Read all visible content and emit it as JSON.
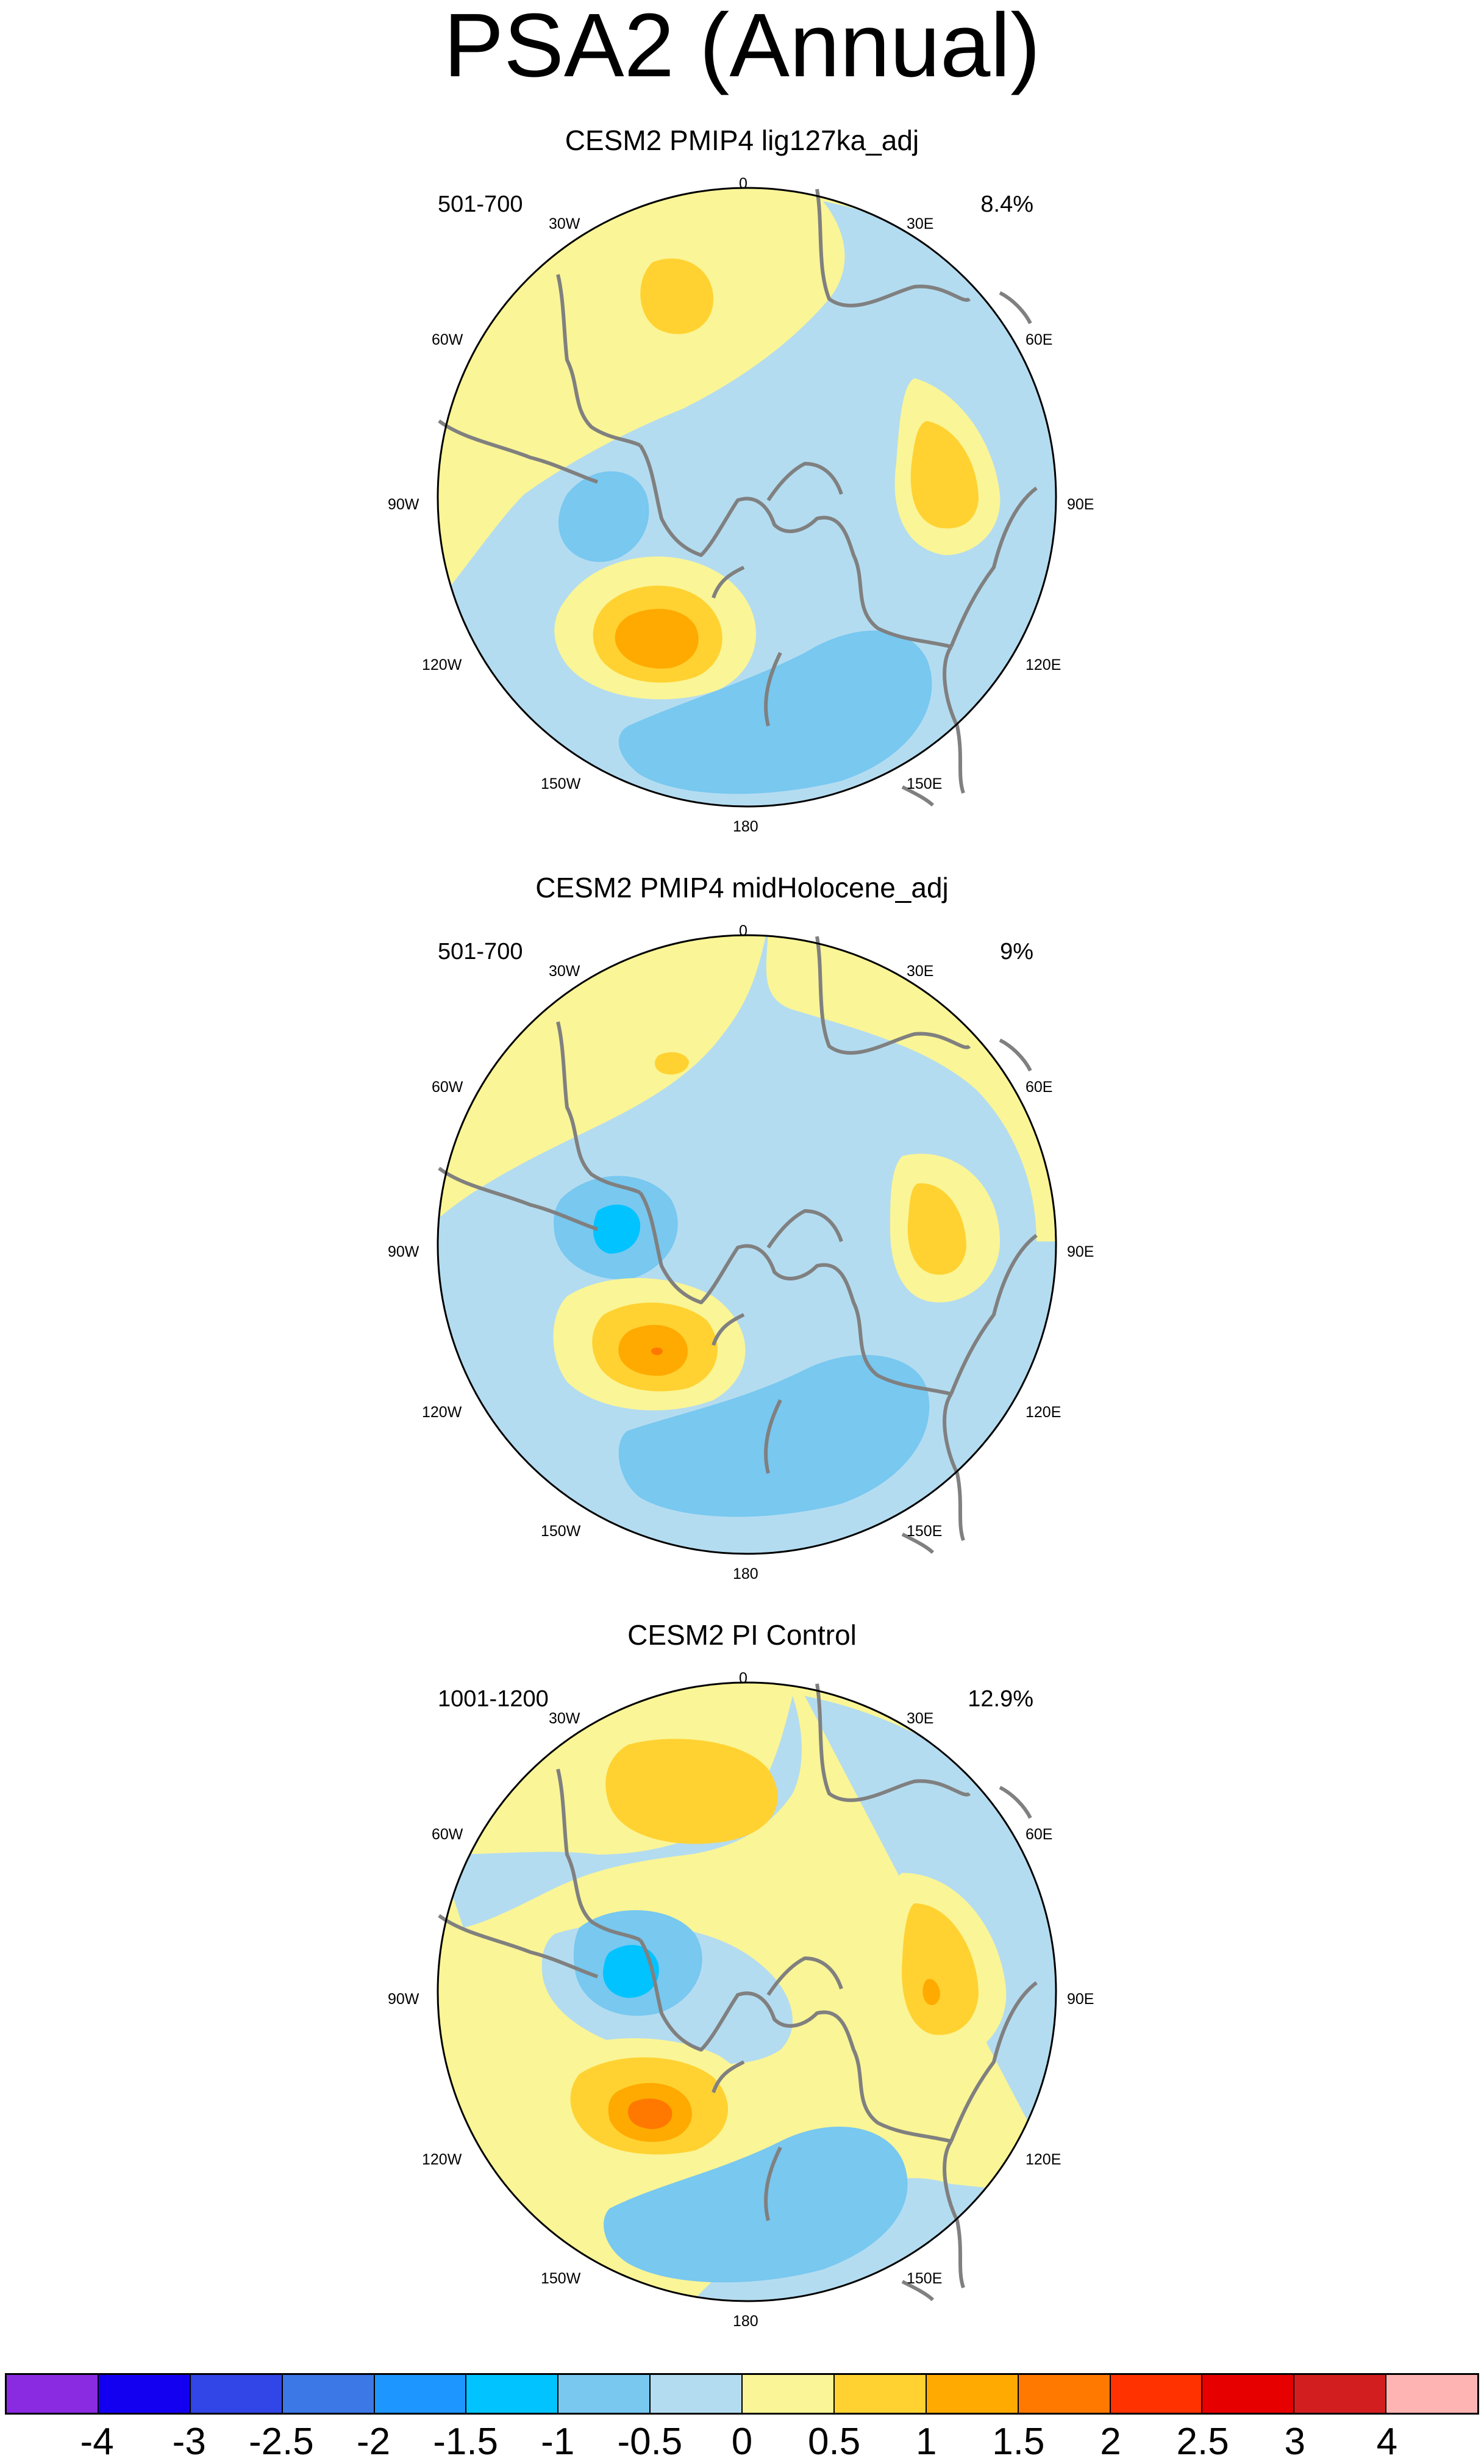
{
  "title": "PSA2 (Annual)",
  "panels": [
    {
      "title": "CESM2 PMIP4 lig127ka_adj",
      "period": "501-700",
      "percent": "8.4%"
    },
    {
      "title": "CESM2 PMIP4 midHolocene_adj",
      "period": "501-700",
      "percent": "9%"
    },
    {
      "title": "CESM2 PI Control",
      "period": "1001-1200",
      "percent": "12.9%"
    }
  ],
  "longitude_labels": {
    "top": "0",
    "bottom": "180",
    "left": [
      "30W",
      "60W",
      "90W",
      "120W",
      "150W"
    ],
    "right": [
      "30E",
      "60E",
      "90E",
      "120E",
      "150E"
    ]
  },
  "colorbar": {
    "labels": [
      "-4",
      "-3",
      "-2.5",
      "-2",
      "-1.5",
      "-1",
      "-0.5",
      "0",
      "0.5",
      "1",
      "1.5",
      "2",
      "2.5",
      "3",
      "4"
    ],
    "colors": [
      "#8A2BE2",
      "#1400F0",
      "#3245E6",
      "#3C78E6",
      "#1E96FF",
      "#00C3FF",
      "#78C8F0",
      "#B4DCF0",
      "#FAF596",
      "#FFD232",
      "#FFAA00",
      "#FF7800",
      "#FF3200",
      "#E60000",
      "#D21E1E",
      "#FFB4B4"
    ]
  },
  "map_colors": {
    "land": "#808080",
    "neg3": "#00C3FF",
    "neg2": "#78C8F0",
    "neg1": "#B4DCF0",
    "pos1": "#FAF596",
    "pos2": "#FFD232",
    "pos3": "#FFAA00",
    "pos4": "#FF7800"
  }
}
